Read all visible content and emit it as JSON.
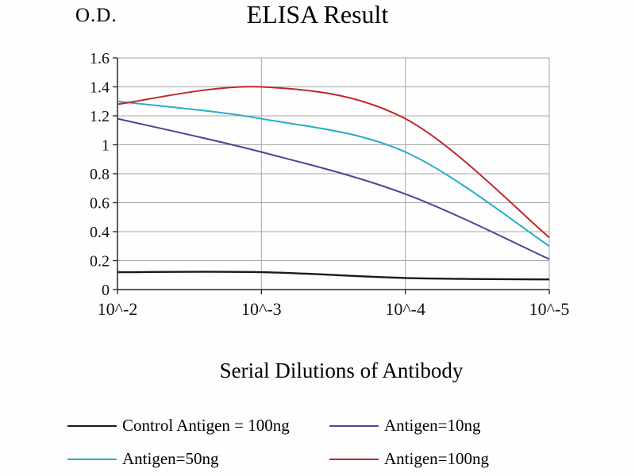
{
  "chart_data": {
    "type": "line",
    "title": "ELISA Result",
    "ylabel": "O.D.",
    "xlabel": "Serial Dilutions of Antibody",
    "categories": [
      "10^-2",
      "10^-3",
      "10^-4",
      "10^-5"
    ],
    "ylim": [
      0,
      1.6
    ],
    "ytick_step": 0.2,
    "ytick_labels": [
      "0",
      "0.2",
      "0.4",
      "0.6",
      "0.8",
      "1",
      "1.2",
      "1.4",
      "1.6"
    ],
    "grid": true,
    "legend_position": "bottom",
    "series": [
      {
        "name": "Control Antigen = 100ng",
        "color": "#1a1a1a",
        "width": 2.4,
        "values": [
          0.12,
          0.12,
          0.08,
          0.07
        ]
      },
      {
        "name": "Antigen=10ng",
        "color": "#5e3c99",
        "width": 2,
        "values": [
          1.18,
          0.95,
          0.66,
          0.21
        ]
      },
      {
        "name": "Antigen=50ng",
        "color": "#27aec5",
        "width": 2,
        "values": [
          1.3,
          1.18,
          0.95,
          0.3
        ]
      },
      {
        "name": "Antigen=100ng",
        "color": "#c22727",
        "width": 2,
        "values": [
          1.28,
          1.4,
          1.18,
          0.36
        ]
      }
    ],
    "colors": {
      "grid": "#a6a6a6",
      "axis": "#262626",
      "background": "#ffffff"
    }
  }
}
